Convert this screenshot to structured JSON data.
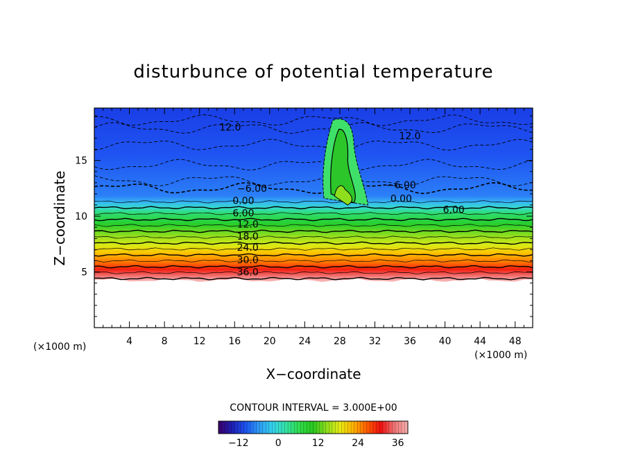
{
  "chart_data": {
    "type": "heatmap",
    "title": "disturbunce of potential temperature",
    "xlabel": "X−coordinate",
    "ylabel": "Z−coordinate",
    "x_unit": "(×1000 m)",
    "x_unit_right": "(×1000 m)",
    "xlim": [
      0,
      50
    ],
    "ylim": [
      0,
      19.7
    ],
    "xticks": [
      4,
      8,
      12,
      16,
      20,
      24,
      28,
      32,
      36,
      40,
      44,
      48
    ],
    "yticks": [
      5,
      10,
      15
    ],
    "contour_interval_text": "CONTOUR INTERVAL = 3.000E+00",
    "contour_interval": 3.0,
    "contour_labels_left": [
      {
        "text": "12.0",
        "x": 15.5,
        "z": 18.0
      },
      {
        "text": "−6.00",
        "x": 18.0,
        "z": 12.5
      },
      {
        "text": "0.00",
        "x": 17.0,
        "z": 11.4
      },
      {
        "text": "6.00",
        "x": 17.0,
        "z": 10.3
      },
      {
        "text": "12.0",
        "x": 17.5,
        "z": 9.3
      },
      {
        "text": "18.0",
        "x": 17.5,
        "z": 8.2
      },
      {
        "text": "24.0",
        "x": 17.5,
        "z": 7.2
      },
      {
        "text": "30.0",
        "x": 17.5,
        "z": 6.1
      },
      {
        "text": "36.0",
        "x": 17.5,
        "z": 5.0
      }
    ],
    "contour_labels_right": [
      {
        "text": "12.0",
        "x": 36.0,
        "z": 17.2
      },
      {
        "text": "−6.00",
        "x": 35.0,
        "z": 12.8
      },
      {
        "text": "0.00",
        "x": 35.0,
        "z": 11.6
      },
      {
        "text": "6.00",
        "x": 41.0,
        "z": 10.6
      }
    ],
    "colorbar": {
      "range": [
        -18,
        39
      ],
      "ticks": [
        -12,
        0,
        12,
        24,
        36
      ],
      "tick_labels": [
        "−12",
        "0",
        "12",
        "24",
        "36"
      ]
    },
    "colormap": [
      "#3b006b",
      "#1f1fb4",
      "#1c54f0",
      "#2e9af5",
      "#34d2ee",
      "#33e2a3",
      "#2fdc4a",
      "#29c81f",
      "#8fde1d",
      "#e8ea14",
      "#ffb000",
      "#ff5b00",
      "#f01010",
      "#f07575",
      "#f6b0b0"
    ]
  }
}
